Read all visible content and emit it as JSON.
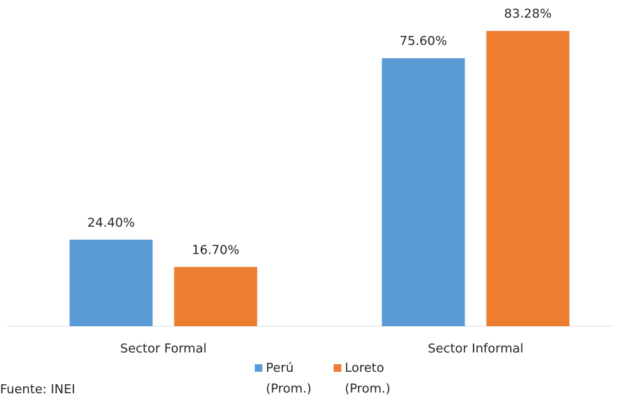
{
  "chart_data": {
    "type": "bar",
    "categories": [
      "Sector Formal",
      "Sector Informal"
    ],
    "series": [
      {
        "name": "Perú (Prom.)",
        "color": "#5b9bd5",
        "values": [
          24.4,
          75.6
        ],
        "value_labels": [
          "24.40%",
          "75.60%"
        ]
      },
      {
        "name": "Loreto (Prom.)",
        "color": "#ed7d31",
        "values": [
          16.7,
          83.28
        ],
        "value_labels": [
          "16.70%",
          "83.28%"
        ]
      }
    ],
    "ylim": [
      0,
      92
    ],
    "legend": "bottom",
    "source": "Fuente: INEI"
  }
}
